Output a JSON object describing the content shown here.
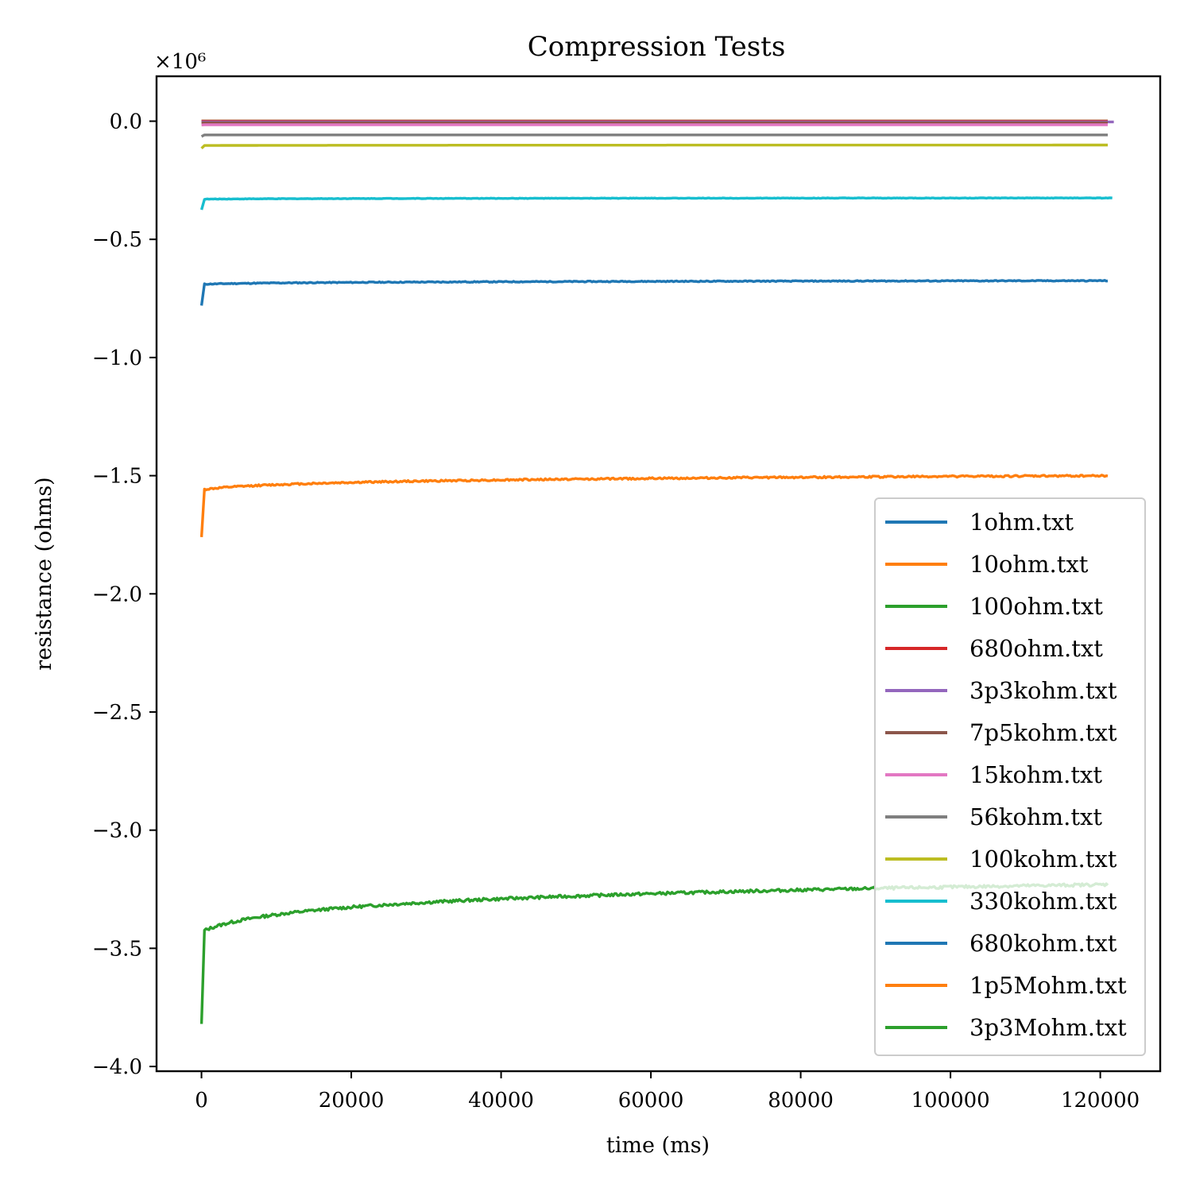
{
  "chart_data": {
    "type": "line",
    "title": "Compression Tests",
    "xlabel": "time (ms)",
    "ylabel": "resistance (ohms)",
    "y_multiplier": "×10⁶",
    "xlim": [
      -6000,
      128000
    ],
    "ylim": [
      -4.02,
      0.19
    ],
    "xticks": [
      0,
      20000,
      40000,
      60000,
      80000,
      100000,
      120000
    ],
    "xtick_labels": [
      "0",
      "20000",
      "40000",
      "60000",
      "80000",
      "100000",
      "120000"
    ],
    "yticks": [
      0.0,
      -0.5,
      -1.0,
      -1.5,
      -2.0,
      -2.5,
      -3.0,
      -3.5,
      -4.0
    ],
    "ytick_labels": [
      "0.0",
      "−0.5",
      "−1.0",
      "−1.5",
      "−2.0",
      "−2.5",
      "−3.0",
      "−3.5",
      "−4.0"
    ],
    "grid": false,
    "legend_position": "lower right",
    "series": [
      {
        "name": "1ohm.txt",
        "color": "#1f77b4",
        "x_end": 121000,
        "start": 0.0,
        "settle": 0.0,
        "final": 0.0,
        "noise": 0.0
      },
      {
        "name": "10ohm.txt",
        "color": "#ff7f0e",
        "x_end": 121000,
        "start": 0.0,
        "settle": 0.0,
        "final": 0.0,
        "noise": 0.0
      },
      {
        "name": "100ohm.txt",
        "color": "#2ca02c",
        "x_end": 121000,
        "start": 0.0,
        "settle": 0.0,
        "final": 0.0,
        "noise": 0.0
      },
      {
        "name": "680ohm.txt",
        "color": "#d62728",
        "x_end": 121000,
        "start": 0.0,
        "settle": 0.0,
        "final": 0.0,
        "noise": 0.0
      },
      {
        "name": "3p3kohm.txt",
        "color": "#9467bd",
        "x_end": 121800,
        "start": -0.003,
        "settle": -0.003,
        "final": -0.003,
        "noise": 0.0
      },
      {
        "name": "7p5kohm.txt",
        "color": "#8c564b",
        "x_end": 121000,
        "start": -0.007,
        "settle": -0.007,
        "final": -0.007,
        "noise": 0.0
      },
      {
        "name": "15kohm.txt",
        "color": "#e377c2",
        "x_end": 121000,
        "start": -0.016,
        "settle": -0.015,
        "final": -0.015,
        "noise": 0.0
      },
      {
        "name": "56kohm.txt",
        "color": "#7f7f7f",
        "x_end": 121000,
        "start": -0.065,
        "settle": -0.058,
        "final": -0.058,
        "noise": 0.0
      },
      {
        "name": "100kohm.txt",
        "color": "#bcbd22",
        "x_end": 121000,
        "start": -0.115,
        "settle": -0.103,
        "final": -0.101,
        "noise": 0.0
      },
      {
        "name": "330kohm.txt",
        "color": "#17becf",
        "x_end": 121600,
        "start": -0.375,
        "settle": -0.33,
        "final": -0.325,
        "noise": 0.002
      },
      {
        "name": "680kohm.txt",
        "color": "#1f77b4",
        "x_end": 121000,
        "start": -0.78,
        "settle": -0.69,
        "final": -0.675,
        "noise": 0.004
      },
      {
        "name": "1p5Mohm.txt",
        "color": "#ff7f0e",
        "x_end": 121000,
        "start": -1.76,
        "settle": -1.56,
        "final": -1.5,
        "noise": 0.007
      },
      {
        "name": "3p3Mohm.txt",
        "color": "#2ca02c",
        "x_end": 121000,
        "start": -3.82,
        "settle": -3.43,
        "final": -3.23,
        "noise": 0.012
      }
    ]
  }
}
